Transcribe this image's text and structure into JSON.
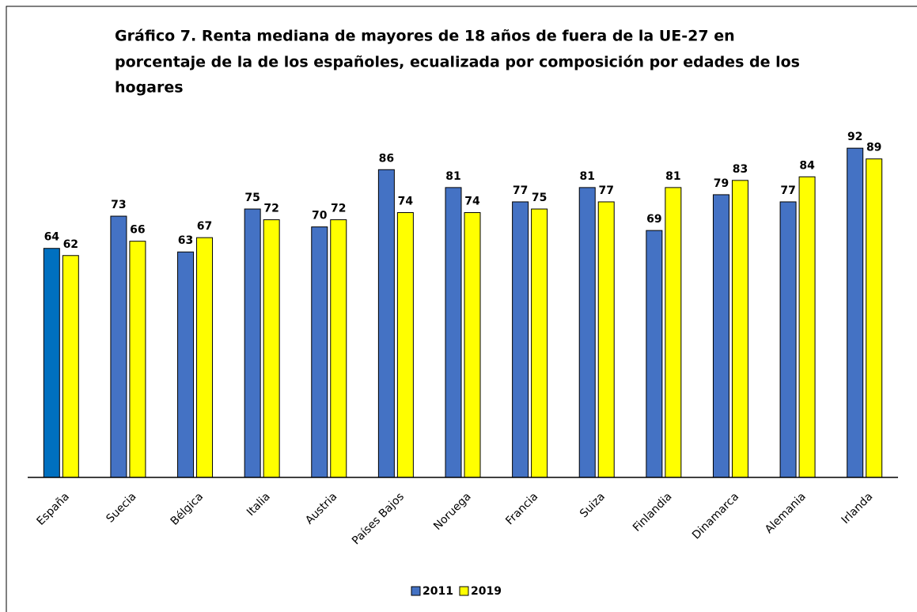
{
  "chart_data": {
    "type": "bar",
    "title": [
      "Gráfico 7. Renta mediana de mayores de 18 años de fuera de la UE-27 en",
      "porcentaje de la de los españoles, ecualizada por composición por edades de los",
      "hogares"
    ],
    "categories": [
      "España",
      "Suecia",
      "Bélgica",
      "Italia",
      "Austria",
      "Países Bajos",
      "Noruega",
      "Francia",
      "Suiza",
      "Finlandia",
      "Dinamarca",
      "Alemania",
      "Irlanda"
    ],
    "series": [
      {
        "name": "2011",
        "color": "#4472c4",
        "colors": [
          "#0070c0",
          "#4472c4",
          "#4472c4",
          "#4472c4",
          "#4472c4",
          "#4472c4",
          "#4472c4",
          "#4472c4",
          "#4472c4",
          "#4472c4",
          "#4472c4",
          "#4472c4",
          "#4472c4"
        ],
        "values": [
          64,
          73,
          63,
          75,
          70,
          86,
          81,
          77,
          81,
          69,
          79,
          77,
          92
        ]
      },
      {
        "name": "2019",
        "color": "#ffff00",
        "values": [
          62,
          66,
          67,
          72,
          72,
          74,
          74,
          75,
          77,
          81,
          83,
          84,
          89
        ]
      }
    ],
    "ylim": [
      0,
      100
    ],
    "legend": "bottom"
  }
}
